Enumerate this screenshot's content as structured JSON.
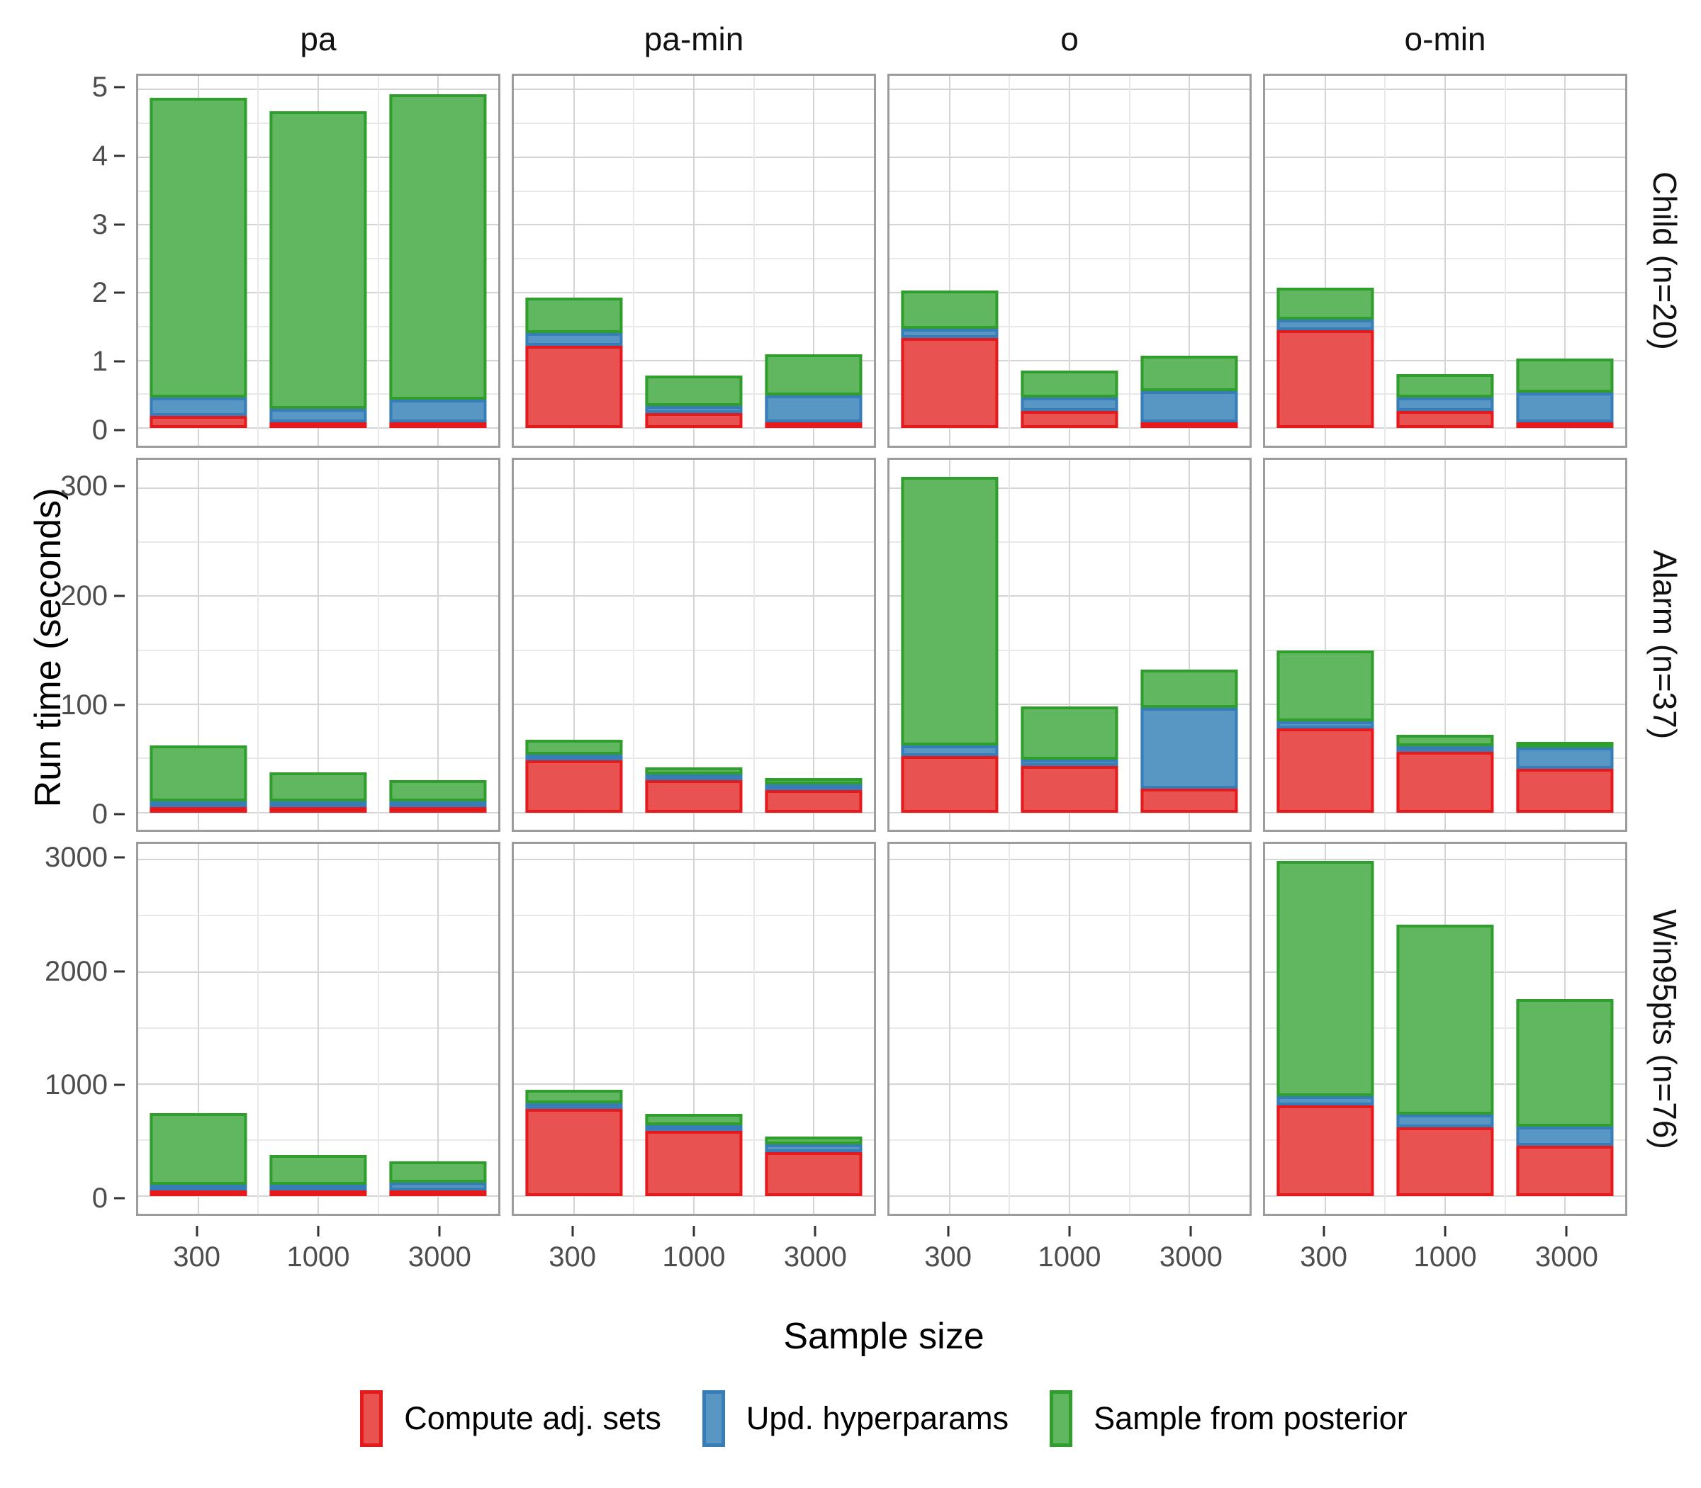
{
  "figure": {
    "x_title": "Sample size",
    "y_title": "Run time (seconds)"
  },
  "legend": {
    "items": [
      {
        "series": "compute_adj_sets",
        "label": "Compute adj. sets",
        "fill": "#e85250",
        "border": "#e41a1c"
      },
      {
        "series": "upd_hyperparams",
        "label": "Upd. hyperparams",
        "fill": "#5897c4",
        "border": "#377eb8"
      },
      {
        "series": "sample_from_posterior",
        "label": "Sample from posterior",
        "fill": "#61b75f",
        "border": "#2f9e2d"
      }
    ]
  },
  "chart_data": {
    "type": "bar",
    "stacked": true,
    "title": "",
    "xlabel": "Sample size",
    "ylabel": "Run time (seconds)",
    "grid": true,
    "legend_position": "bottom",
    "x_categories": [
      "300",
      "1000",
      "3000"
    ],
    "facet_cols": [
      "pa",
      "pa-min",
      "o",
      "o-min"
    ],
    "series_order": [
      "compute_adj_sets",
      "upd_hyperparams",
      "sample_from_posterior"
    ],
    "note": "each bar = [compute_adj_sets, upd_hyperparams, sample_from_posterior] stacked bottom-to-top, seconds",
    "rows": [
      {
        "label": "Child (n=20)",
        "y_ticks": [
          0,
          1,
          2,
          3,
          4,
          5
        ],
        "y_minor": [
          0.5,
          1.5,
          2.5,
          3.5,
          4.5
        ],
        "ylim": [
          -0.26,
          5.2
        ],
        "panels": {
          "pa": [
            [
              0.18,
              0.27,
              4.43
            ],
            [
              0.09,
              0.19,
              4.4
            ],
            [
              0.09,
              0.33,
              4.51
            ]
          ],
          "pa-min": [
            [
              1.22,
              0.18,
              0.53
            ],
            [
              0.22,
              0.11,
              0.45
            ],
            [
              0.08,
              0.4,
              0.61
            ]
          ],
          "o": [
            [
              1.33,
              0.14,
              0.56
            ],
            [
              0.25,
              0.2,
              0.4
            ],
            [
              0.05,
              0.48,
              0.54
            ]
          ],
          "o-min": [
            [
              1.45,
              0.15,
              0.47
            ],
            [
              0.25,
              0.2,
              0.35
            ],
            [
              0.07,
              0.45,
              0.51
            ]
          ]
        }
      },
      {
        "label": "Alarm (n=37)",
        "y_ticks": [
          0,
          100,
          200,
          300
        ],
        "y_minor": [
          50,
          150,
          250
        ],
        "ylim": [
          -16,
          326
        ],
        "panels": {
          "pa": [
            [
              1.5,
              2.5,
              58
            ],
            [
              1,
              2,
              34
            ],
            [
              1,
              2,
              27
            ]
          ],
          "pa-min": [
            [
              50,
              3,
              14
            ],
            [
              32,
              3,
              7
            ],
            [
              22,
              4,
              6
            ]
          ],
          "o": [
            [
              52,
              10,
              248
            ],
            [
              43,
              6,
              49
            ],
            [
              22,
              75,
              35
            ]
          ],
          "o-min": [
            [
              78,
              6,
              66
            ],
            [
              57,
              4,
              11
            ],
            [
              41,
              20,
              4
            ]
          ]
        }
      },
      {
        "label": "Win95pts (n=76)",
        "y_ticks": [
          0,
          1000,
          2000,
          3000
        ],
        "y_minor": [
          500,
          1500,
          2500
        ],
        "ylim": [
          -157,
          3140
        ],
        "panels": {
          "pa": [
            [
              15,
              50,
              675
            ],
            [
              10,
              35,
              325
            ],
            [
              20,
              75,
              215
            ]
          ],
          "pa-min": [
            [
              790,
              35,
              125
            ],
            [
              590,
              40,
              105
            ],
            [
              395,
              65,
              70
            ]
          ],
          "o": [],
          "o-min": [
            [
              810,
              80,
              2100
            ],
            [
              615,
              115,
              1690
            ],
            [
              450,
              170,
              1140
            ]
          ]
        }
      }
    ]
  }
}
